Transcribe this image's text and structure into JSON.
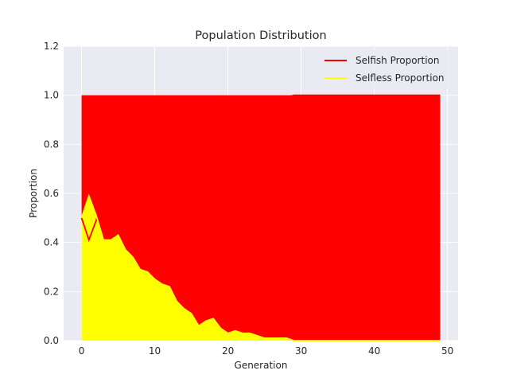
{
  "chart_data": {
    "type": "area",
    "title": "Population Distribution",
    "xlabel": "Generation",
    "ylabel": "Proportion",
    "xlim": [
      -2.45,
      51.45
    ],
    "ylim": [
      0,
      1.2
    ],
    "xticks": [
      0,
      10,
      20,
      30,
      40,
      50
    ],
    "yticks": [
      0.0,
      0.2,
      0.4,
      0.6,
      0.8,
      1.0,
      1.2
    ],
    "xtick_labels": [
      "0",
      "10",
      "20",
      "30",
      "40",
      "50"
    ],
    "ytick_labels": [
      "0.0",
      "0.2",
      "0.4",
      "0.6",
      "0.8",
      "1.0",
      "1.2"
    ],
    "grid": true,
    "legend_position": "top-right",
    "background": "#eaeaf2",
    "x": [
      0,
      1,
      2,
      3,
      4,
      5,
      6,
      7,
      8,
      9,
      10,
      11,
      12,
      13,
      14,
      15,
      16,
      17,
      18,
      19,
      20,
      21,
      22,
      23,
      24,
      25,
      26,
      27,
      28,
      29,
      30,
      31,
      32,
      33,
      34,
      35,
      36,
      37,
      38,
      39,
      40,
      41,
      42,
      43,
      44,
      45,
      46,
      47,
      48,
      49
    ],
    "series": [
      {
        "name": "Selfish Proportion",
        "color": "#ff0000",
        "values": [
          0.5,
          0.41,
          0.49,
          0.59,
          0.59,
          0.57,
          0.63,
          0.66,
          0.71,
          0.72,
          0.75,
          0.77,
          0.78,
          0.84,
          0.87,
          0.89,
          0.94,
          0.92,
          0.91,
          0.95,
          0.97,
          0.96,
          0.97,
          0.97,
          0.98,
          0.99,
          0.99,
          0.99,
          0.99,
          1.0,
          1.0,
          1.0,
          1.0,
          1.0,
          1.0,
          1.0,
          1.0,
          1.0,
          1.0,
          1.0,
          1.0,
          1.0,
          1.0,
          1.0,
          1.0,
          1.0,
          1.0,
          1.0,
          1.0,
          1.0
        ]
      },
      {
        "name": "Selfless Proportion",
        "color": "#ffff00",
        "values": [
          0.5,
          0.59,
          0.51,
          0.41,
          0.41,
          0.43,
          0.37,
          0.34,
          0.29,
          0.28,
          0.25,
          0.23,
          0.22,
          0.16,
          0.13,
          0.11,
          0.06,
          0.08,
          0.09,
          0.05,
          0.03,
          0.04,
          0.03,
          0.03,
          0.02,
          0.01,
          0.01,
          0.01,
          0.01,
          0.0,
          0.0,
          0.0,
          0.0,
          0.0,
          0.0,
          0.0,
          0.0,
          0.0,
          0.0,
          0.0,
          0.0,
          0.0,
          0.0,
          0.0,
          0.0,
          0.0,
          0.0,
          0.0,
          0.0,
          0.0
        ]
      }
    ]
  }
}
